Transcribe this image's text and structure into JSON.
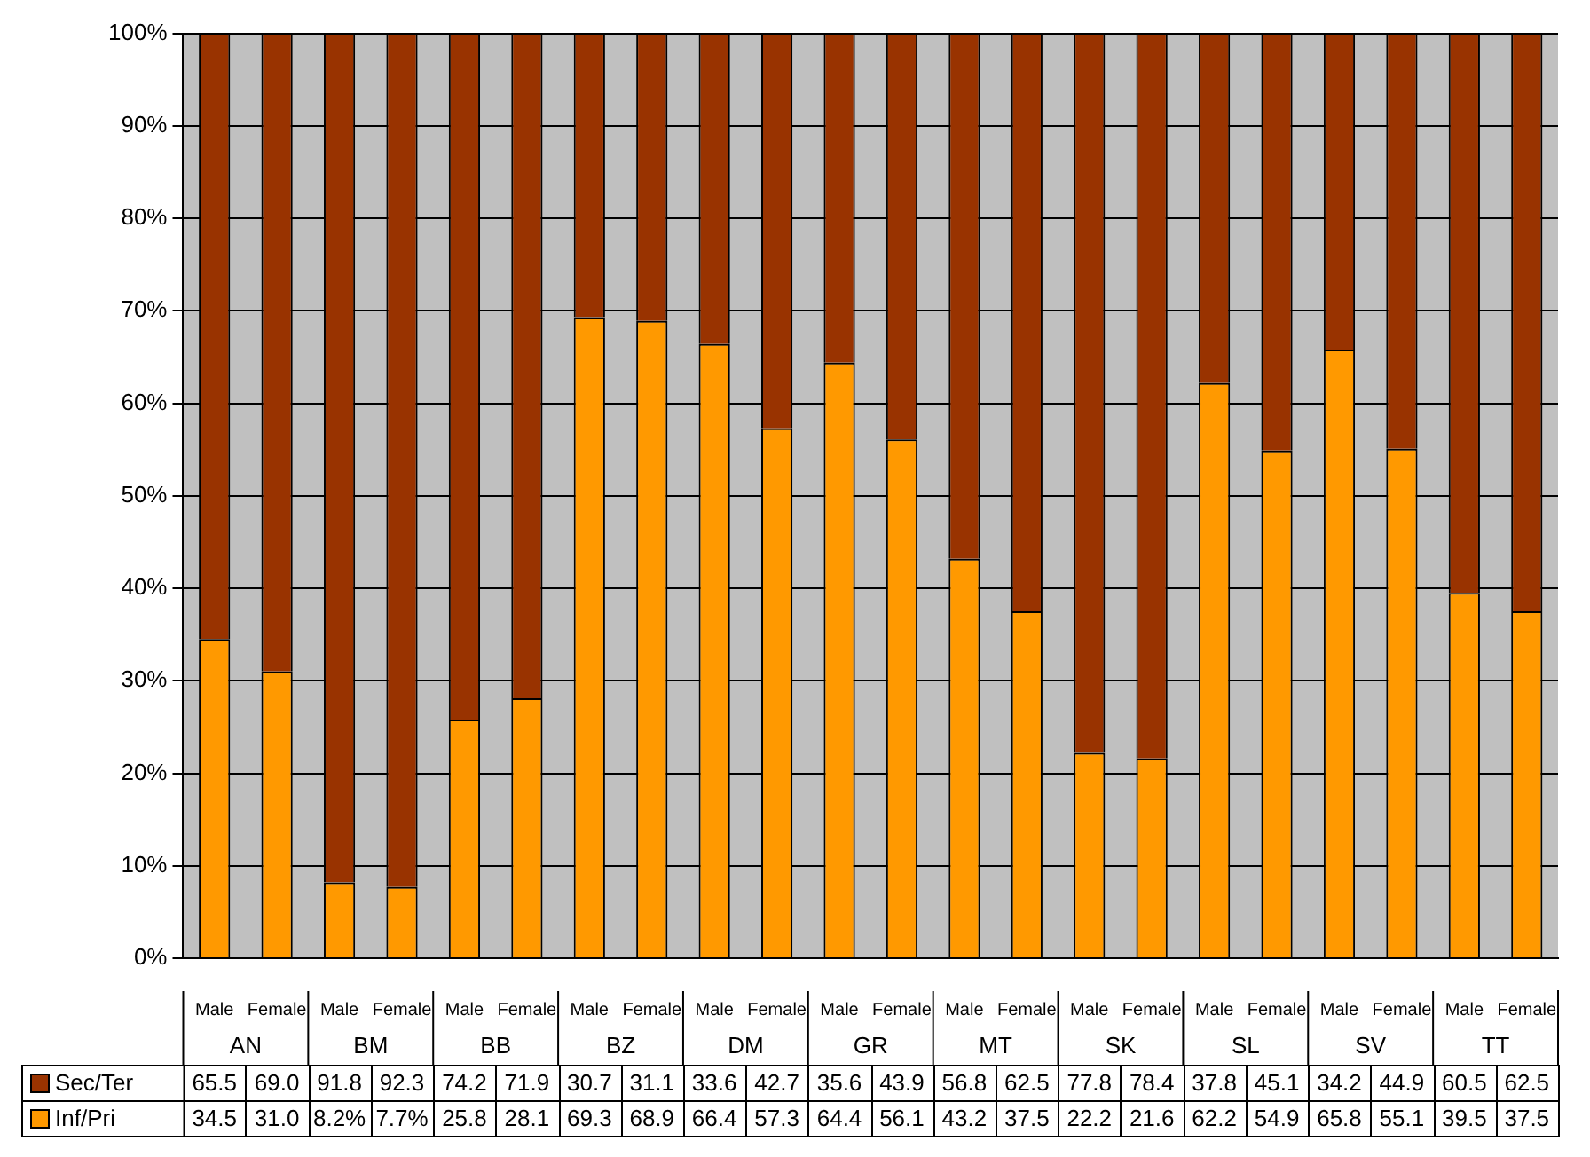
{
  "chart_data": {
    "type": "bar",
    "stacked": true,
    "categories": [
      "Male",
      "Female",
      "Male",
      "Female",
      "Male",
      "Female",
      "Male",
      "Female",
      "Male",
      "Female",
      "Male",
      "Female",
      "Male",
      "Female",
      "Male",
      "Female",
      "Male",
      "Female",
      "Male",
      "Female",
      "Male",
      "Female"
    ],
    "series": [
      {
        "name": "Inf/Pri",
        "color": "#ff9900",
        "values": [
          34.5,
          31.0,
          8.2,
          7.7,
          25.8,
          28.1,
          69.3,
          68.9,
          66.4,
          57.3,
          64.4,
          56.1,
          43.2,
          37.5,
          22.2,
          21.6,
          62.2,
          54.9,
          65.8,
          55.1,
          39.5,
          37.5
        ],
        "value_labels": [
          "34.5",
          "31.0",
          "8.2%",
          "7.7%",
          "25.8",
          "28.1",
          "69.3",
          "68.9",
          "66.4",
          "57.3",
          "64.4",
          "56.1",
          "43.2",
          "37.5",
          "22.2",
          "21.6",
          "62.2",
          "54.9",
          "65.8",
          "55.1",
          "39.5",
          "37.5"
        ]
      },
      {
        "name": "Sec/Ter",
        "color": "#993300",
        "values": [
          65.5,
          69.0,
          91.8,
          92.3,
          74.2,
          71.9,
          30.7,
          31.1,
          33.6,
          42.7,
          35.6,
          43.9,
          56.8,
          62.5,
          77.8,
          78.4,
          37.8,
          45.1,
          34.2,
          44.9,
          60.5,
          62.5
        ],
        "value_labels": [
          "65.5",
          "69.0",
          "91.8",
          "92.3",
          "74.2",
          "71.9",
          "30.7",
          "31.1",
          "33.6",
          "42.7",
          "35.6",
          "43.9",
          "56.8",
          "62.5",
          "77.8",
          "78.4",
          "37.8",
          "45.1",
          "34.2",
          "44.9",
          "60.5",
          "62.5"
        ]
      }
    ],
    "annotations": [
      "AN",
      "BM",
      "BB",
      "BZ",
      "DM",
      "GR",
      "MT",
      "SK",
      "SL",
      "SV",
      "TT"
    ],
    "ylim": [
      0,
      100
    ],
    "yticks": [
      {
        "value": 0,
        "label": "0%"
      },
      {
        "value": 10,
        "label": "10%"
      },
      {
        "value": 20,
        "label": "20%"
      },
      {
        "value": 30,
        "label": "30%"
      },
      {
        "value": 40,
        "label": "40%"
      },
      {
        "value": 50,
        "label": "50%"
      },
      {
        "value": 60,
        "label": "60%"
      },
      {
        "value": 70,
        "label": "70%"
      },
      {
        "value": 80,
        "label": "80%"
      },
      {
        "value": 90,
        "label": "90%"
      },
      {
        "value": 100,
        "label": "100%"
      }
    ],
    "grid": "y",
    "legend": "bottom left"
  }
}
